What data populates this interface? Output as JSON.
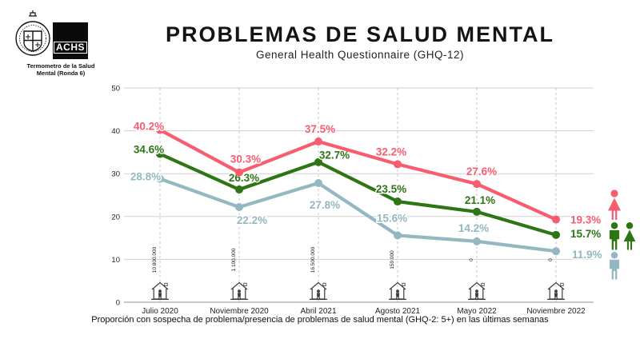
{
  "header": {
    "achs_logo_text": "ACHS",
    "logo_caption_line1": "Termometro de la Salud",
    "logo_caption_line2": "Mental (Ronda 6)",
    "title": "PROBLEMAS DE SALUD MENTAL",
    "subtitle": "General Health Questionnaire (GHQ-12)"
  },
  "chart_data": {
    "type": "line",
    "title": "PROBLEMAS DE SALUD MENTAL",
    "subtitle": "General Health Questionnaire (GHQ-12)",
    "categories": [
      "Julio 2020",
      "Noviembre 2020",
      "Abril 2021",
      "Agosto 2021",
      "Mayo 2022",
      "Noviembre 2022"
    ],
    "series": [
      {
        "name": "mujeres",
        "icon": "woman-icon",
        "color": "#F75C6F",
        "values": [
          40.2,
          30.3,
          37.5,
          32.2,
          27.6,
          19.3
        ]
      },
      {
        "name": "total-hombres-y-mujeres",
        "icon": "man-woman-icon",
        "color": "#2E7516",
        "values": [
          34.6,
          26.3,
          32.7,
          23.5,
          21.1,
          15.7
        ]
      },
      {
        "name": "hombres",
        "icon": "man-icon",
        "color": "#93B8BF",
        "values": [
          28.8,
          22.2,
          27.8,
          15.6,
          14.2,
          11.9
        ]
      }
    ],
    "value_suffix": "%",
    "yticks": [
      0,
      10,
      20,
      30,
      40,
      50
    ],
    "ylim": [
      0,
      50
    ],
    "grid": true,
    "legend_position": "right",
    "x_annotations": [
      "10.800.000",
      "1.100.000",
      "16.500.000",
      "159.000",
      "0",
      "0"
    ],
    "x_annotation_icon": "stay-home-icon"
  },
  "footer": {
    "caption": "Proporción con sospecha de problema/presencia de problemas de salud mental (GHQ-2: 5+) en las últimas semanas"
  }
}
